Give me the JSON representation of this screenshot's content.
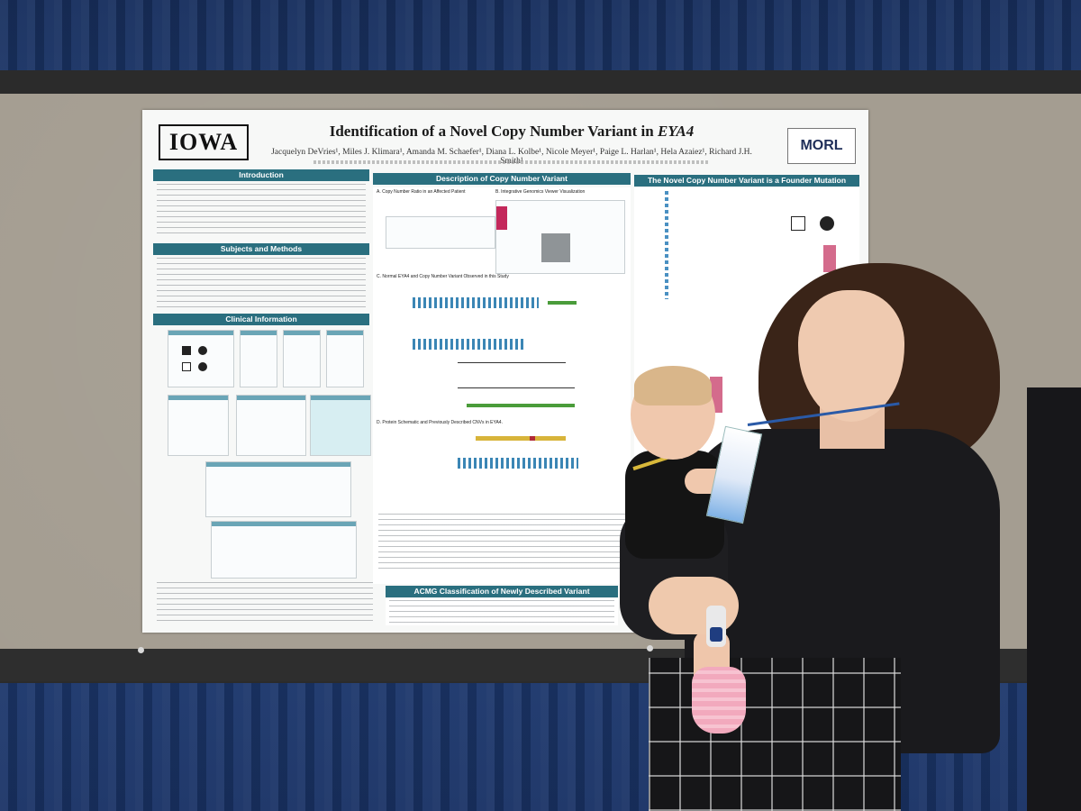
{
  "poster": {
    "logo_left": "IOWA",
    "title_prefix": "Identification of a Novel Copy Number Variant in ",
    "title_gene": "EYA4",
    "authors": "Jacquelyn DeVries¹, Miles J. Klimara¹, Amanda M. Schaefer¹, Diana L. Kolbe¹, Nicole Meyer¹, Paige L. Harlan¹, Hela Azaiez¹, Richard J.H. Smith¹",
    "logo_right": "MORL",
    "sections": {
      "introduction": "Introduction",
      "subjects_methods": "Subjects and Methods",
      "clinical_info": "Clinical Information",
      "cnv_description": "Description of Copy Number Variant",
      "founder": "The Novel Copy Number Variant is a Founder Mutation",
      "acmg": "ACMG Classification of Newly Described Variant"
    },
    "panels": {
      "a": "A. Copy Number Ratio in an Affected Patient",
      "b": "B. Integrative Genomics Viewer Visualization",
      "c": "C. Normal EYA4 and Copy Number Variant Observed in this Study",
      "d": "D. Protein Schematic and Previously Described CNVs in EYA4."
    }
  }
}
